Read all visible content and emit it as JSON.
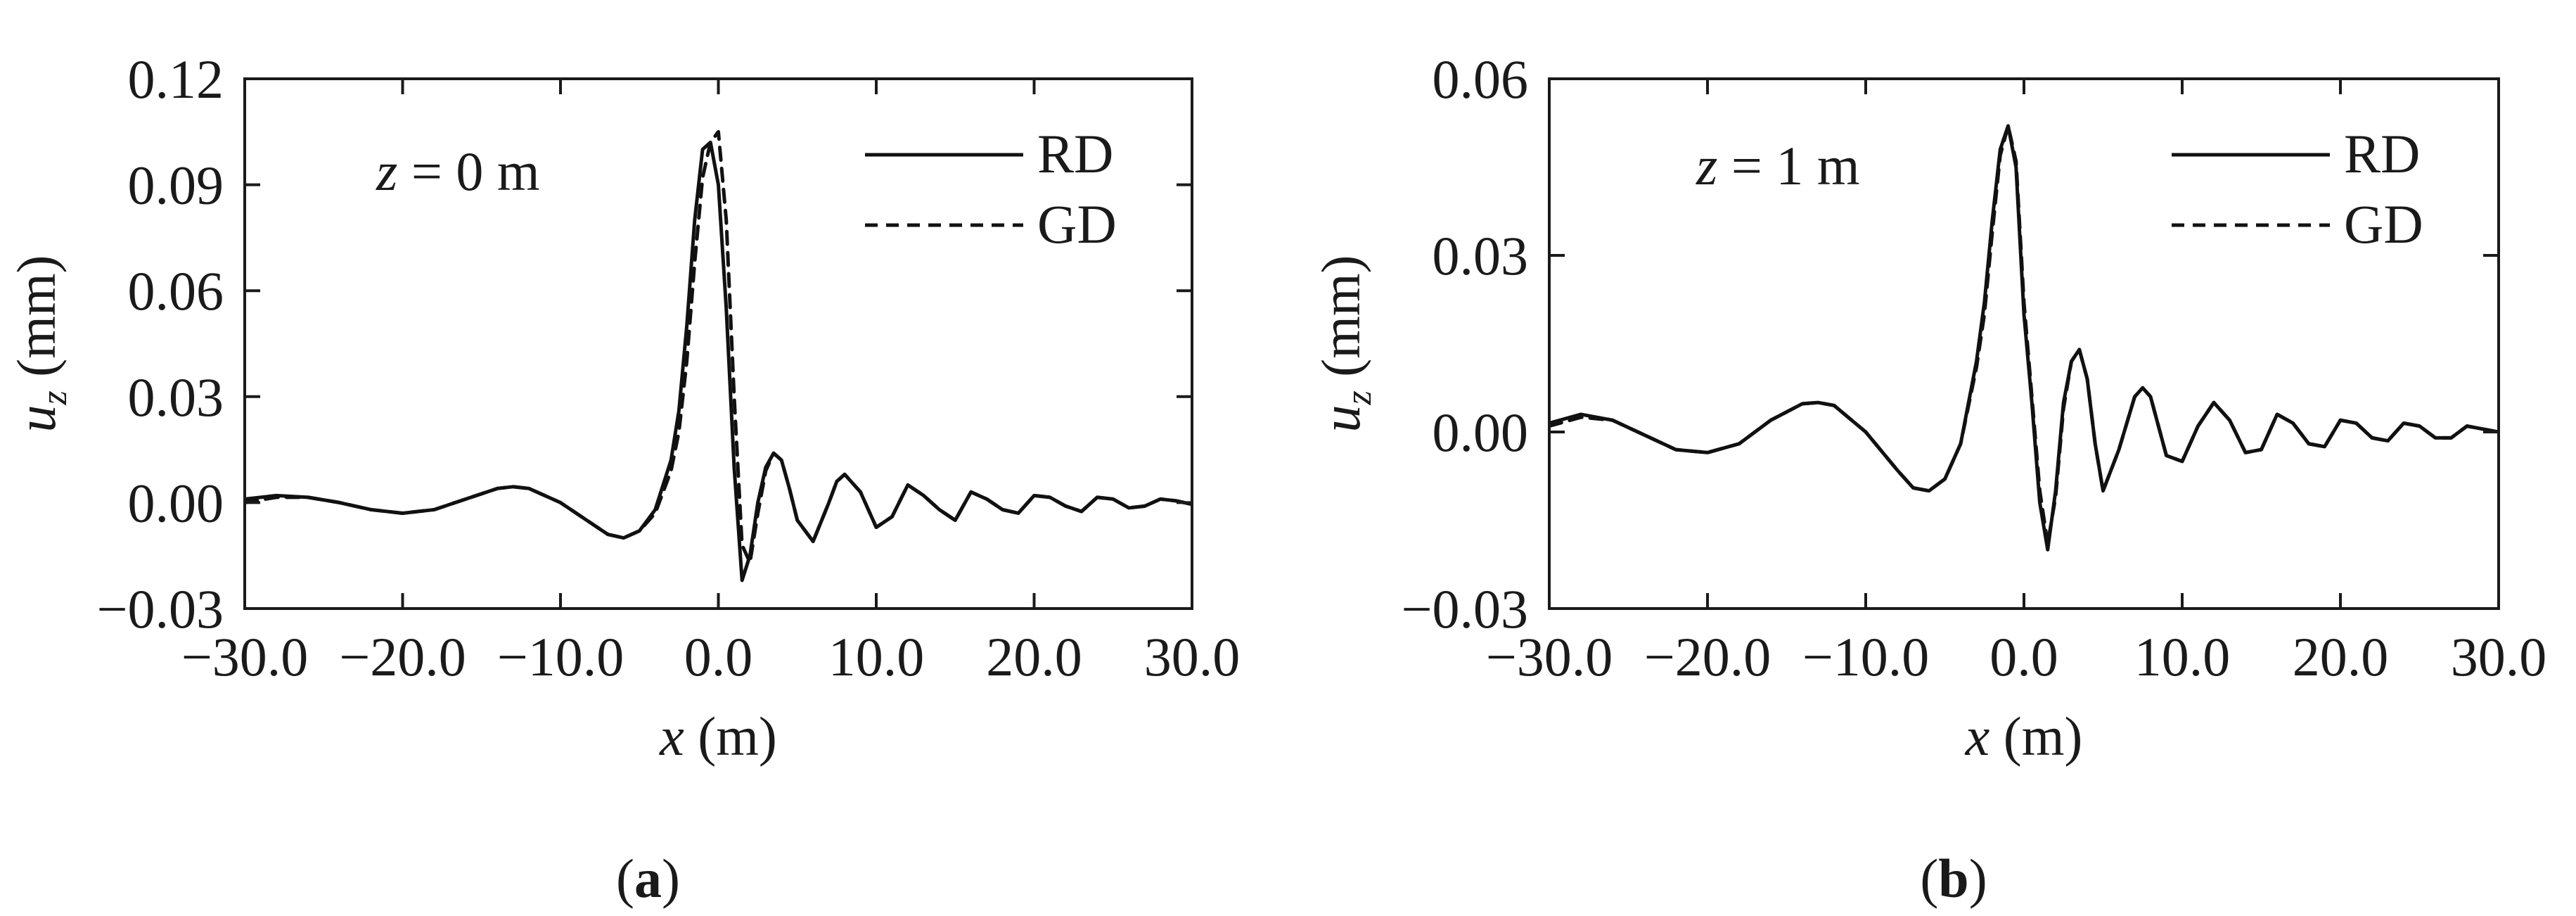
{
  "chart_data": [
    {
      "type": "line",
      "panel_label": "(a)",
      "panel_letter": "a",
      "annotation": {
        "variable": "z",
        "equals": "=",
        "value": "0",
        "unit": "m"
      },
      "xlabel": {
        "variable": "x",
        "unit": "(m)"
      },
      "ylabel": {
        "variable": "u",
        "subscript": "z",
        "unit": "(mm)"
      },
      "xlim": [
        -30,
        30
      ],
      "ylim": [
        -0.03,
        0.12
      ],
      "xticks": [
        -30,
        -20,
        -10,
        0,
        10,
        20,
        30
      ],
      "xtick_labels": [
        "−30.0",
        "−20.0",
        "−10.0",
        "0.0",
        "10.0",
        "20.0",
        "30.0"
      ],
      "yticks": [
        -0.03,
        0,
        0.03,
        0.06,
        0.09,
        0.12
      ],
      "ytick_labels": [
        "−0.03",
        "0.00",
        "0.03",
        "0.06",
        "0.09",
        "0.12"
      ],
      "grid": false,
      "legend_position": "top-right",
      "series": [
        {
          "name": "RD",
          "style": "solid",
          "x": [
            -30,
            -28,
            -26,
            -24,
            -22,
            -20,
            -18,
            -16,
            -14,
            -13,
            -12,
            -10,
            -8,
            -7,
            -6,
            -5,
            -4,
            -3,
            -2.5,
            -2,
            -1.5,
            -1,
            -0.5,
            0,
            0.5,
            1,
            1.5,
            2,
            2.5,
            3,
            3.5,
            4,
            4.5,
            5,
            6,
            7,
            7.5,
            8,
            9,
            10,
            11,
            12,
            13,
            14,
            15,
            16,
            17,
            18,
            19,
            20,
            21,
            22,
            23,
            24,
            25,
            26,
            27,
            28,
            29,
            30
          ],
          "y": [
            0.001,
            0.002,
            0.0015,
            0,
            -0.002,
            -0.003,
            -0.002,
            0.001,
            0.004,
            0.0045,
            0.004,
            0,
            -0.006,
            -0.009,
            -0.01,
            -0.008,
            -0.002,
            0.012,
            0.026,
            0.05,
            0.08,
            0.1,
            0.102,
            0.09,
            0.055,
            0.01,
            -0.022,
            -0.015,
            0,
            0.01,
            0.014,
            0.012,
            0.004,
            -0.005,
            -0.011,
            0,
            0.006,
            0.008,
            0.003,
            -0.007,
            -0.004,
            0.005,
            0.002,
            -0.002,
            -0.005,
            0.003,
            0.001,
            -0.002,
            -0.003,
            0.002,
            0.0015,
            -0.001,
            -0.0025,
            0.0015,
            0.001,
            -0.0015,
            -0.001,
            0.001,
            0.0005,
            -0.0005
          ]
        },
        {
          "name": "GD",
          "style": "dashed",
          "x": [
            -30,
            -28,
            -26,
            -24,
            -22,
            -20,
            -18,
            -16,
            -14,
            -13,
            -12,
            -10,
            -8,
            -7,
            -6,
            -5,
            -4,
            -3,
            -2.5,
            -2,
            -1.5,
            -1,
            -0.5,
            0,
            0.5,
            1,
            1.5,
            2,
            2.5,
            3,
            3.5,
            4,
            4.5,
            5,
            6,
            7,
            7.5,
            8,
            9,
            10,
            11,
            12,
            13,
            14,
            15,
            16,
            17,
            18,
            19,
            20,
            21,
            22,
            23,
            24,
            25,
            26,
            27,
            28,
            29,
            30
          ],
          "y": [
            0,
            0.0015,
            0.0015,
            0,
            -0.002,
            -0.003,
            -0.002,
            0.001,
            0.004,
            0.0045,
            0.004,
            0,
            -0.006,
            -0.009,
            -0.01,
            -0.008,
            -0.003,
            0.009,
            0.02,
            0.04,
            0.068,
            0.092,
            0.102,
            0.105,
            0.08,
            0.03,
            -0.012,
            -0.017,
            -0.003,
            0.009,
            0.014,
            0.012,
            0.004,
            -0.005,
            -0.011,
            0,
            0.006,
            0.008,
            0.003,
            -0.007,
            -0.004,
            0.005,
            0.002,
            -0.002,
            -0.005,
            0.003,
            0.001,
            -0.002,
            -0.003,
            0.002,
            0.0015,
            -0.001,
            -0.0025,
            0.0015,
            0.001,
            -0.0015,
            -0.001,
            0.001,
            0.0005,
            -0.0005
          ]
        }
      ]
    },
    {
      "type": "line",
      "panel_label": "(b)",
      "panel_letter": "b",
      "annotation": {
        "variable": "z",
        "equals": "=",
        "value": "1",
        "unit": "m"
      },
      "xlabel": {
        "variable": "x",
        "unit": "(m)"
      },
      "ylabel": {
        "variable": "u",
        "subscript": "z",
        "unit": "(mm)"
      },
      "xlim": [
        -30,
        30
      ],
      "ylim": [
        -0.03,
        0.06
      ],
      "xticks": [
        -30,
        -20,
        -10,
        0,
        10,
        20,
        30
      ],
      "xtick_labels": [
        "−30.0",
        "−20.0",
        "−10.0",
        "0.0",
        "10.0",
        "20.0",
        "30.0"
      ],
      "yticks": [
        -0.03,
        0,
        0.03,
        0.06
      ],
      "ytick_labels": [
        "−0.03",
        "0.00",
        "0.03",
        "0.06"
      ],
      "grid": false,
      "legend_position": "top-right",
      "series": [
        {
          "name": "RD",
          "style": "solid",
          "x": [
            -30,
            -28,
            -26,
            -24,
            -22,
            -20,
            -18,
            -16,
            -14,
            -13,
            -12,
            -10,
            -8,
            -7,
            -6,
            -5,
            -4,
            -3,
            -2.5,
            -2,
            -1.5,
            -1,
            -0.5,
            0,
            0.5,
            1,
            1.5,
            2,
            2.5,
            3,
            3.5,
            4,
            4.5,
            5,
            6,
            7,
            7.5,
            8,
            9,
            10,
            11,
            12,
            13,
            14,
            15,
            16,
            17,
            18,
            19,
            20,
            21,
            22,
            23,
            24,
            25,
            26,
            27,
            28,
            29,
            30
          ],
          "y": [
            0.0015,
            0.003,
            0.002,
            -0.0005,
            -0.003,
            -0.0035,
            -0.002,
            0.002,
            0.0048,
            0.005,
            0.0045,
            0,
            -0.0065,
            -0.0095,
            -0.01,
            -0.008,
            -0.002,
            0.012,
            0.022,
            0.036,
            0.048,
            0.052,
            0.045,
            0.02,
            0.005,
            -0.012,
            -0.02,
            -0.01,
            0.005,
            0.012,
            0.014,
            0.009,
            -0.002,
            -0.01,
            -0.003,
            0.006,
            0.0075,
            0.006,
            -0.004,
            -0.005,
            0.001,
            0.005,
            0.002,
            -0.0035,
            -0.003,
            0.003,
            0.0015,
            -0.002,
            -0.0025,
            0.002,
            0.0015,
            -0.001,
            -0.0015,
            0.0015,
            0.001,
            -0.001,
            -0.001,
            0.001,
            0.0005,
            0
          ]
        },
        {
          "name": "GD",
          "style": "dashed",
          "x": [
            -30,
            -28,
            -26,
            -24,
            -22,
            -20,
            -18,
            -16,
            -14,
            -13,
            -12,
            -10,
            -8,
            -7,
            -6,
            -5,
            -4,
            -3,
            -2.5,
            -2,
            -1.5,
            -1,
            -0.5,
            0,
            0.5,
            1,
            1.5,
            2,
            2.5,
            3,
            3.5,
            4,
            4.5,
            5,
            6,
            7,
            7.5,
            8,
            9,
            10,
            11,
            12,
            13,
            14,
            15,
            16,
            17,
            18,
            19,
            20,
            21,
            22,
            23,
            24,
            25,
            26,
            27,
            28,
            29,
            30
          ],
          "y": [
            0.001,
            0.0025,
            0.002,
            -0.0005,
            -0.003,
            -0.0035,
            -0.002,
            0.002,
            0.0048,
            0.005,
            0.0045,
            0,
            -0.0065,
            -0.0095,
            -0.01,
            -0.008,
            -0.002,
            0.011,
            0.02,
            0.034,
            0.047,
            0.052,
            0.046,
            0.022,
            0.006,
            -0.01,
            -0.019,
            -0.011,
            0.004,
            0.012,
            0.014,
            0.009,
            -0.002,
            -0.01,
            -0.003,
            0.006,
            0.0075,
            0.006,
            -0.004,
            -0.005,
            0.001,
            0.005,
            0.002,
            -0.0035,
            -0.003,
            0.003,
            0.0015,
            -0.002,
            -0.0025,
            0.002,
            0.0015,
            -0.001,
            -0.0015,
            0.0015,
            0.001,
            -0.001,
            -0.001,
            0.001,
            0.0005,
            0
          ]
        }
      ]
    }
  ]
}
